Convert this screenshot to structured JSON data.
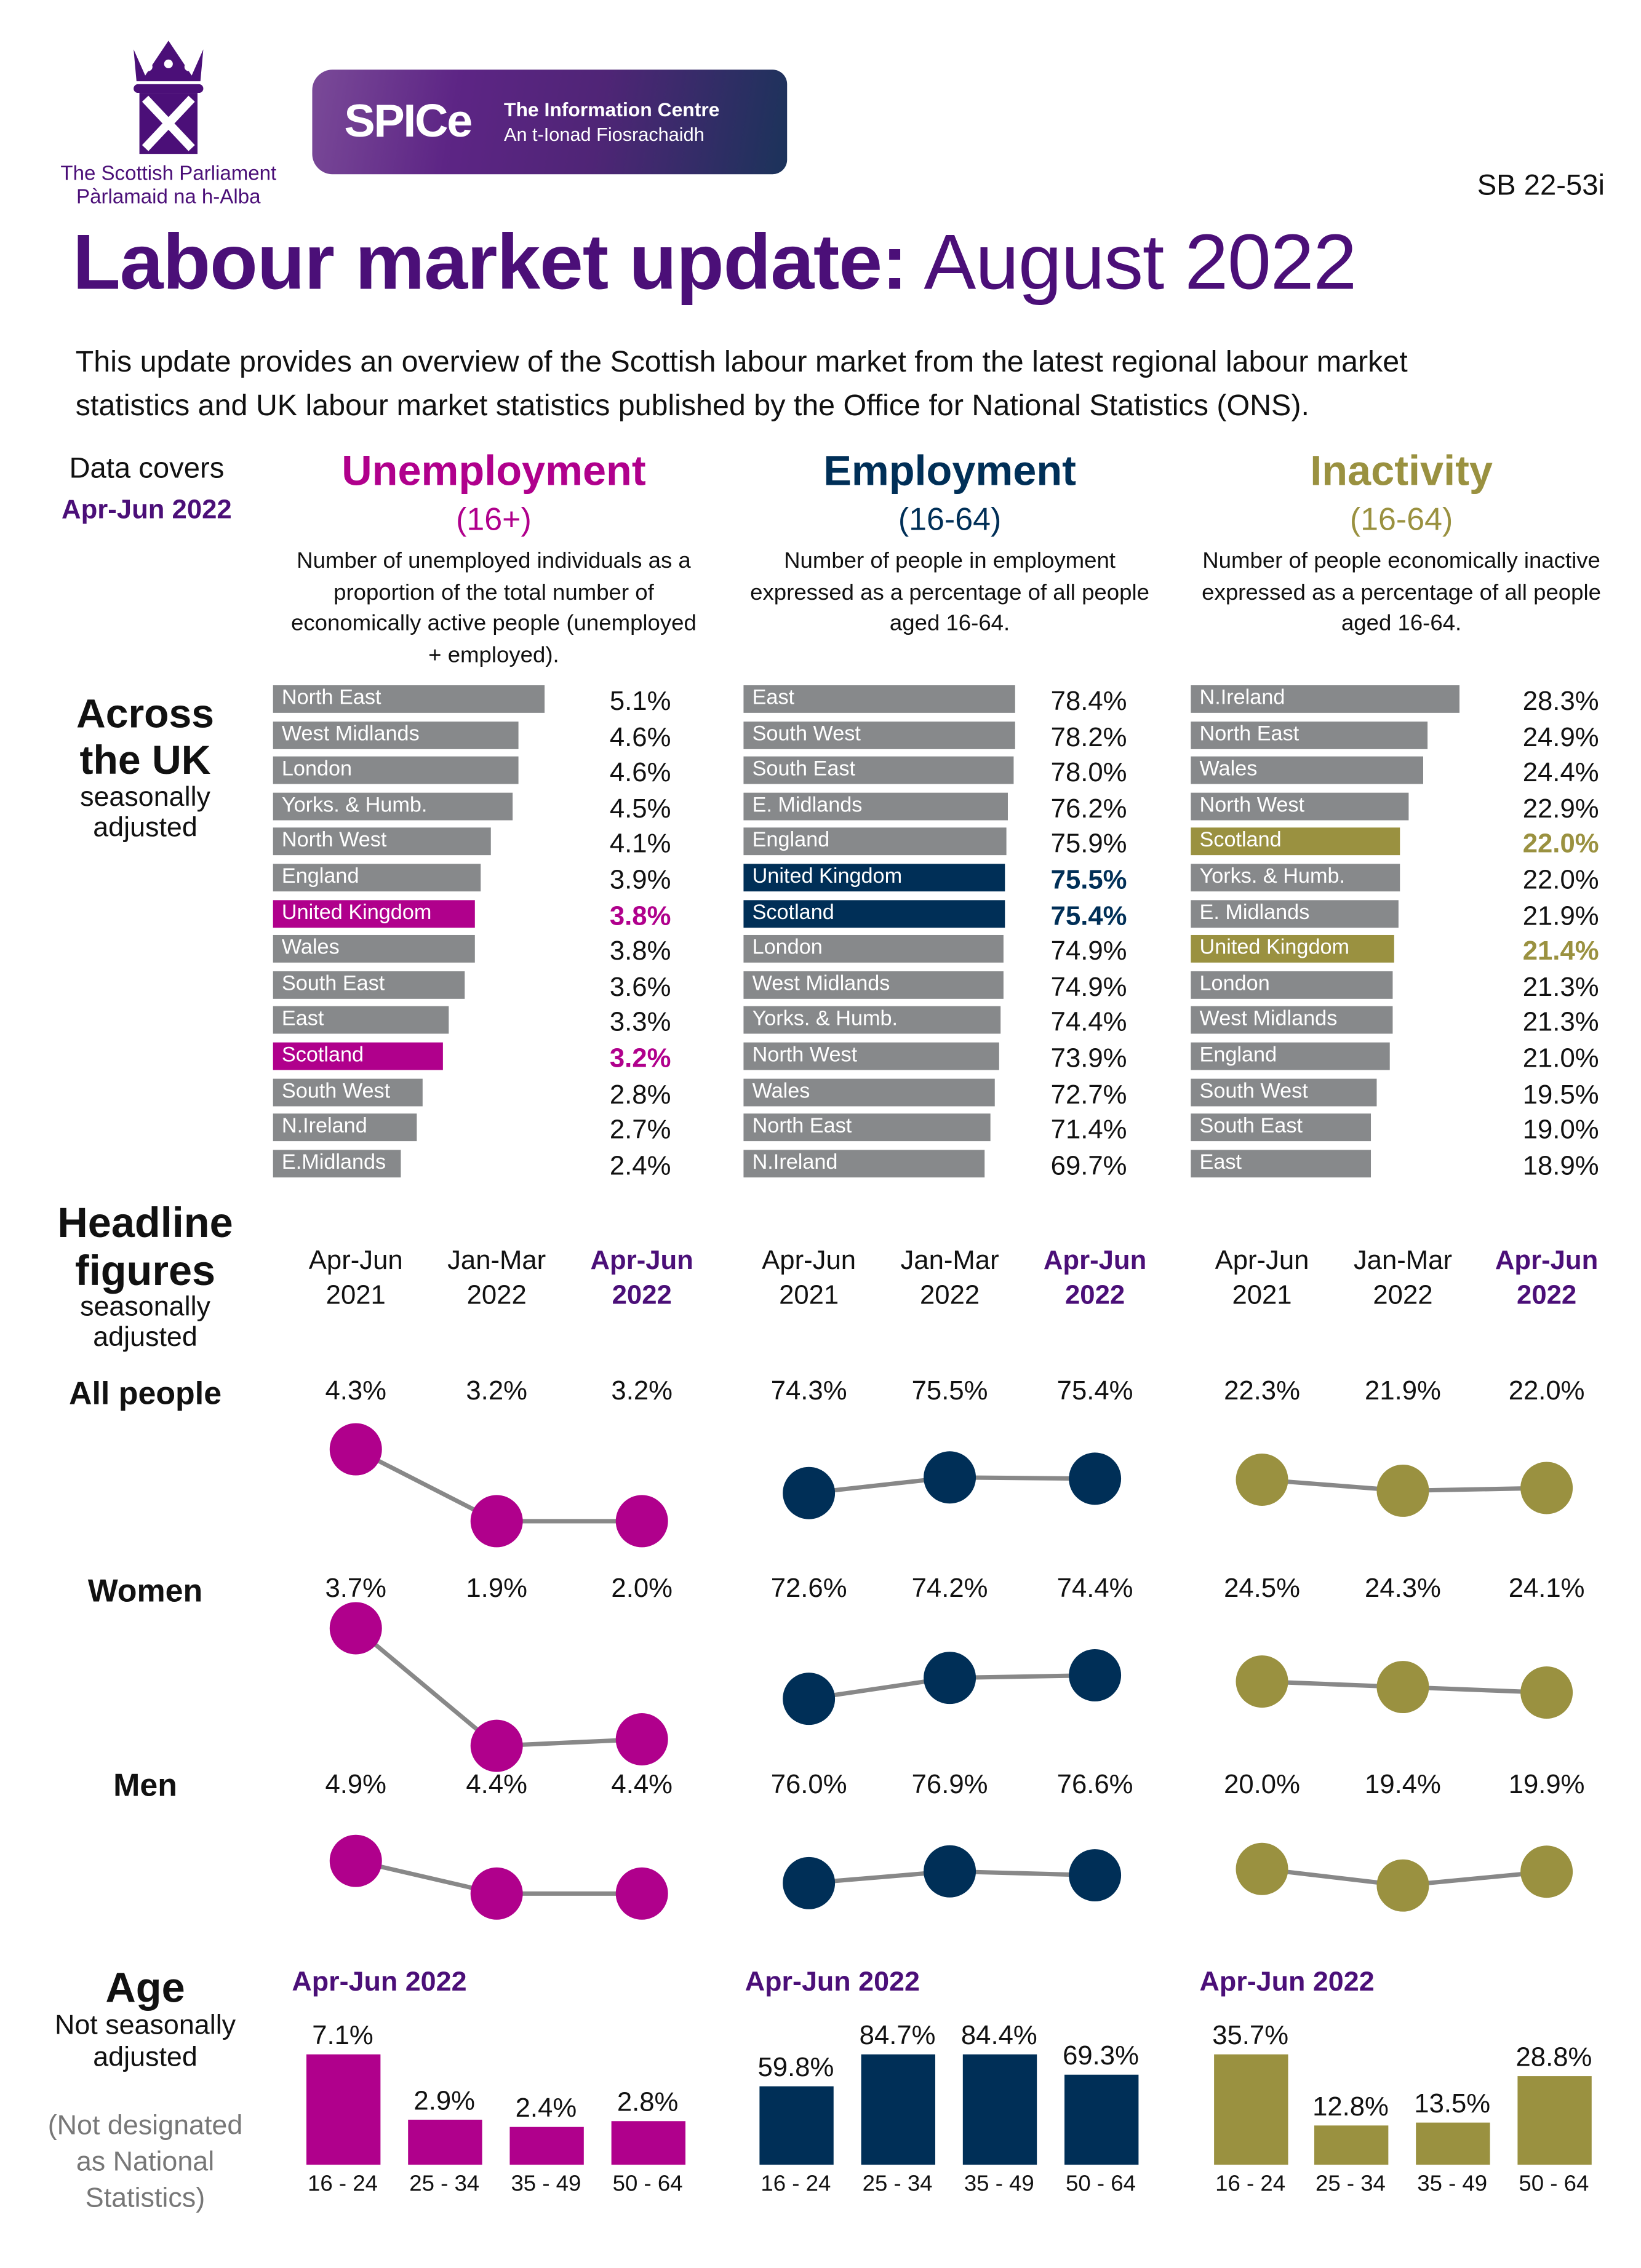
{
  "header": {
    "org_name": "The Scottish Parliament",
    "org_name_gaelic": "Pàrlamaid na h-Alba",
    "spice_logo": "SPICe",
    "spice_title": "The Information Centre",
    "spice_subtitle": "An t-Ionad Fiosrachaidh",
    "ref": "SB 22-53i",
    "title_bold": "Labour market update:",
    "title_rest": "August 2022",
    "intro": "This update provides an overview of the Scottish labour market from the latest regional labour market statistics and UK labour market statistics published by the Office for National Statistics (ONS)."
  },
  "data_covers": {
    "label": "Data covers",
    "period": "Apr-Jun 2022"
  },
  "sections": {
    "across_uk": {
      "title_line1": "Across",
      "title_line2": "the UK",
      "note_line1": "seasonally",
      "note_line2": "adjusted"
    },
    "headline": {
      "title_line1": "Headline",
      "title_line2": "figures",
      "note_line1": "seasonally",
      "note_line2": "adjusted",
      "rows": [
        "All people",
        "Women",
        "Men"
      ]
    },
    "age": {
      "title": "Age",
      "note_line1": "Not seasonally",
      "note_line2": "adjusted",
      "caveat_line1": "(Not designated",
      "caveat_line2": "as National",
      "caveat_line3": "Statistics)"
    }
  },
  "colors": {
    "title_purple": "#4b0f78",
    "unemployment": "#b0008c",
    "employment": "#002f57",
    "inactivity": "#9a9140",
    "bar_grey": "#87898b",
    "line_grey": "#888888"
  },
  "indicators": [
    {
      "name": "Unemployment",
      "age_range": "(16+)",
      "color": "#b0008c",
      "description": "Number of unemployed individuals as a proportion of the total number of economically active people (unemployed + employed).",
      "regions": [
        {
          "name": "North East",
          "value": 5.1
        },
        {
          "name": "West Midlands",
          "value": 4.6
        },
        {
          "name": "London",
          "value": 4.6
        },
        {
          "name": "Yorks. & Humb.",
          "value": 4.5
        },
        {
          "name": "North West",
          "value": 4.1
        },
        {
          "name": "England",
          "value": 3.9
        },
        {
          "name": "United Kingdom",
          "value": 3.8,
          "highlight": true
        },
        {
          "name": "Wales",
          "value": 3.8
        },
        {
          "name": "South East",
          "value": 3.6
        },
        {
          "name": "East",
          "value": 3.3
        },
        {
          "name": "Scotland",
          "value": 3.2,
          "highlight": true
        },
        {
          "name": "South West",
          "value": 2.8
        },
        {
          "name": "N.Ireland",
          "value": 2.7
        },
        {
          "name": "E.Midlands",
          "value": 2.4
        }
      ],
      "headline": {
        "periods": [
          {
            "line1": "Apr-Jun",
            "line2": "2021"
          },
          {
            "line1": "Jan-Mar",
            "line2": "2022"
          },
          {
            "line1": "Apr-Jun",
            "line2": "2022",
            "current": true
          }
        ],
        "all": [
          4.3,
          3.2,
          3.2
        ],
        "women": [
          3.7,
          1.9,
          2.0
        ],
        "men": [
          4.9,
          4.4,
          4.4
        ]
      },
      "age": {
        "period": "Apr-Jun 2022",
        "groups": [
          "16 - 24",
          "25 - 34",
          "35 - 49",
          "50 - 64"
        ],
        "values": [
          7.1,
          2.9,
          2.4,
          2.8
        ]
      }
    },
    {
      "name": "Employment",
      "age_range": "(16-64)",
      "color": "#002f57",
      "description": "Number of people in employment expressed as a percentage of all people aged 16-64.",
      "regions": [
        {
          "name": "East",
          "value": 78.4
        },
        {
          "name": "South West",
          "value": 78.2
        },
        {
          "name": "South East",
          "value": 78.0
        },
        {
          "name": "E. Midlands",
          "value": 76.2
        },
        {
          "name": "England",
          "value": 75.9
        },
        {
          "name": "United Kingdom",
          "value": 75.5,
          "highlight": true
        },
        {
          "name": "Scotland",
          "value": 75.4,
          "highlight": true
        },
        {
          "name": "London",
          "value": 74.9
        },
        {
          "name": "West Midlands",
          "value": 74.9
        },
        {
          "name": "Yorks. & Humb.",
          "value": 74.4
        },
        {
          "name": "North West",
          "value": 73.9
        },
        {
          "name": "Wales",
          "value": 72.7
        },
        {
          "name": "North East",
          "value": 71.4
        },
        {
          "name": "N.Ireland",
          "value": 69.7
        }
      ],
      "headline": {
        "periods": [
          {
            "line1": "Apr-Jun",
            "line2": "2021"
          },
          {
            "line1": "Jan-Mar",
            "line2": "2022"
          },
          {
            "line1": "Apr-Jun",
            "line2": "2022",
            "current": true
          }
        ],
        "all": [
          74.3,
          75.5,
          75.4
        ],
        "women": [
          72.6,
          74.2,
          74.4
        ],
        "men": [
          76.0,
          76.9,
          76.6
        ]
      },
      "age": {
        "period": "Apr-Jun 2022",
        "groups": [
          "16 - 24",
          "25 - 34",
          "35 - 49",
          "50 - 64"
        ],
        "values": [
          59.8,
          84.7,
          84.4,
          69.3
        ]
      }
    },
    {
      "name": "Inactivity",
      "age_range": "(16-64)",
      "color": "#9a9140",
      "description": "Number of people economically inactive expressed as a percentage of all people aged 16-64.",
      "regions": [
        {
          "name": "N.Ireland",
          "value": 28.3
        },
        {
          "name": "North East",
          "value": 24.9
        },
        {
          "name": "Wales",
          "value": 24.4
        },
        {
          "name": "North West",
          "value": 22.9
        },
        {
          "name": "Scotland",
          "value": 22.0,
          "highlight": true
        },
        {
          "name": "Yorks. & Humb.",
          "value": 22.0
        },
        {
          "name": "E. Midlands",
          "value": 21.9
        },
        {
          "name": "United Kingdom",
          "value": 21.4,
          "highlight": true
        },
        {
          "name": "London",
          "value": 21.3
        },
        {
          "name": "West Midlands",
          "value": 21.3
        },
        {
          "name": "England",
          "value": 21.0
        },
        {
          "name": "South West",
          "value": 19.5
        },
        {
          "name": "South East",
          "value": 19.0
        },
        {
          "name": "East",
          "value": 18.9
        }
      ],
      "headline": {
        "periods": [
          {
            "line1": "Apr-Jun",
            "line2": "2021"
          },
          {
            "line1": "Jan-Mar",
            "line2": "2022"
          },
          {
            "line1": "Apr-Jun",
            "line2": "2022",
            "current": true
          }
        ],
        "all": [
          22.3,
          21.9,
          22.0
        ],
        "women": [
          24.5,
          24.3,
          24.1
        ],
        "men": [
          20.0,
          19.4,
          19.9
        ]
      },
      "age": {
        "period": "Apr-Jun 2022",
        "groups": [
          "16 - 24",
          "25 - 34",
          "35 - 49",
          "50 - 64"
        ],
        "values": [
          35.7,
          12.8,
          13.5,
          28.8
        ]
      }
    }
  ]
}
